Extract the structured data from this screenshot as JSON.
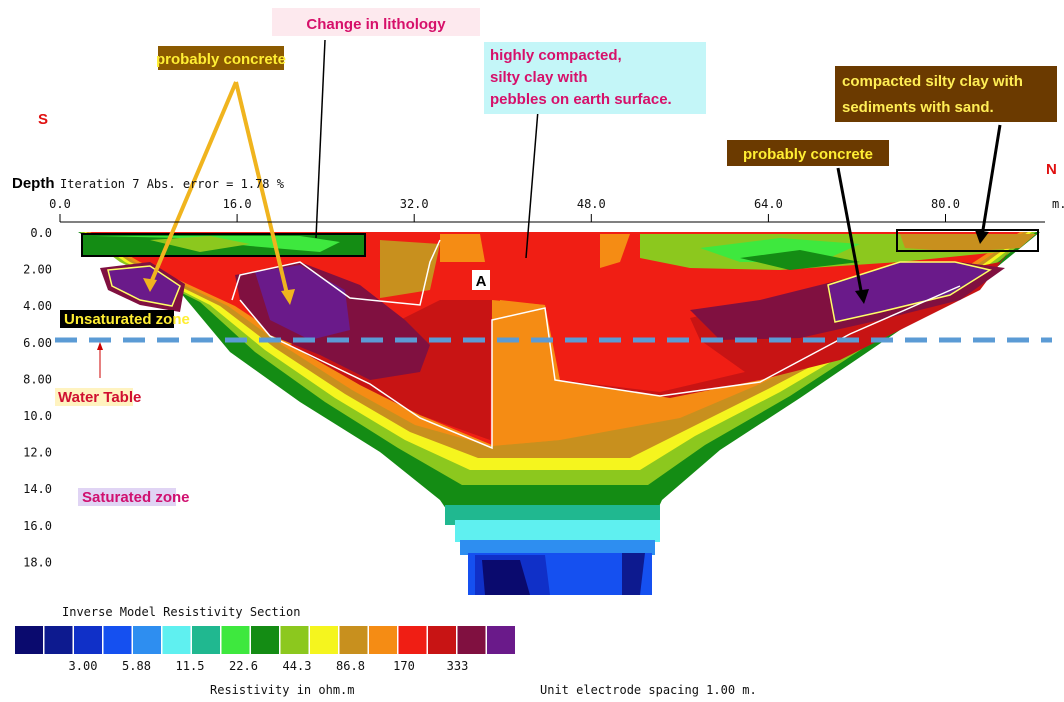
{
  "header": {
    "direction_left": "S",
    "direction_right": "N",
    "depth_label": "Depth",
    "iteration": "Iteration 7 Abs. error = 1.78 %"
  },
  "x_axis": {
    "ticks": [
      "0.0",
      "16.0",
      "32.0",
      "48.0",
      "64.0",
      "80.0"
    ],
    "unit": "m."
  },
  "depth_axis": {
    "ticks": [
      "0.0",
      "2.00",
      "4.00",
      "6.00",
      "8.00",
      "10.0",
      "12.0",
      "14.0",
      "16.0",
      "18.0"
    ]
  },
  "annotations": {
    "lithology": "Change in lithology",
    "concrete_left": "probably concrete",
    "compacted_lines": [
      "highly compacted,",
      "silty clay with",
      "pebbles on earth surface."
    ],
    "sediments_lines": [
      "compacted silty clay with",
      "sediments with sand."
    ],
    "concrete_right": "probably concrete",
    "marker": "A",
    "unsaturated": "Unsaturated zone",
    "water_table": "Water Table",
    "saturated": "Saturated zone"
  },
  "legend": {
    "title": "Inverse Model Resistivity Section",
    "colors": [
      "#0a0a6e",
      "#0d1a8f",
      "#1030c8",
      "#1550f0",
      "#2e8ef0",
      "#5ff0f0",
      "#20b890",
      "#3ee83e",
      "#148c14",
      "#8cc81e",
      "#f5f51e",
      "#c8901e",
      "#f58c14",
      "#f01e14",
      "#c81414",
      "#801040",
      "#6a1a8a"
    ],
    "labels": [
      "3.00",
      "5.88",
      "11.5",
      "22.6",
      "44.3",
      "86.8",
      "170",
      "333"
    ],
    "unit": "Resistivity in ohm.m",
    "spacing": "Unit electrode spacing 1.00 m."
  }
}
